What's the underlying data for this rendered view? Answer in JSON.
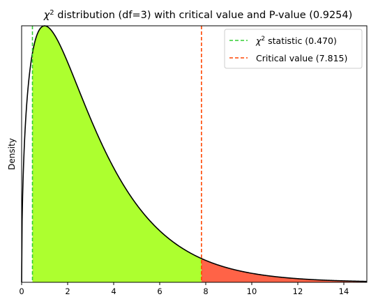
{
  "chart_data": {
    "type": "area",
    "title_prefix": "χ",
    "title_sup": "2",
    "title_rest": " distribution (df=3) with critical value and P-value (0.9254)",
    "ylabel": "Density",
    "xlabel": "",
    "df": 3,
    "xlim": [
      0,
      15
    ],
    "ylim": [
      0,
      0.242
    ],
    "x_ticks": [
      0,
      2,
      4,
      6,
      8,
      10,
      12,
      14
    ],
    "chi2_statistic": 0.47,
    "critical_value": 7.815,
    "p_value": 0.9254,
    "grid": false,
    "legend_position": "upper right",
    "legend": [
      {
        "prefix": "χ",
        "sup": "2",
        "rest": " statistic (0.470)",
        "color": "#32cd32"
      },
      {
        "prefix": "",
        "sup": "",
        "rest": "Critical value (7.815)",
        "color": "#ff4500"
      }
    ],
    "colors": {
      "curve": "#000000",
      "acceptance_fill": "#adff2f",
      "rejection_fill": "#ff6347",
      "statistic_line": "#32cd32",
      "critical_line": "#ff4500"
    }
  }
}
